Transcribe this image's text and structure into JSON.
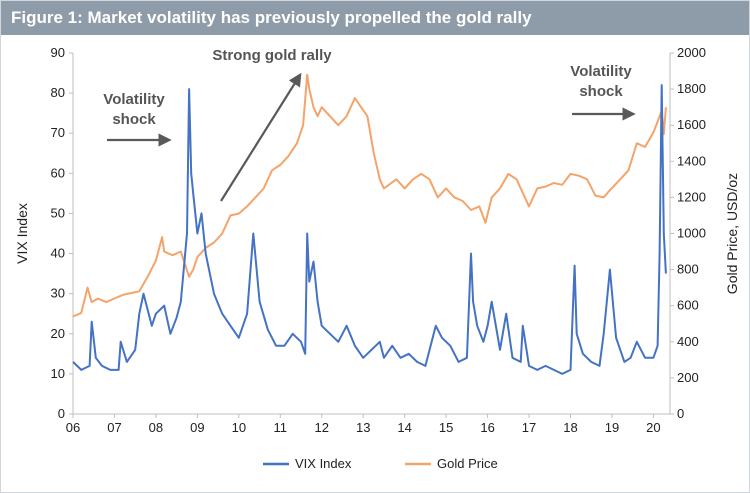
{
  "figure": {
    "title": "Figure 1: Market volatility has previously propelled the gold rally"
  },
  "chart_data": {
    "type": "line",
    "xlabel": "",
    "x_ticks": [
      "06",
      "07",
      "08",
      "09",
      "10",
      "11",
      "12",
      "13",
      "14",
      "15",
      "16",
      "17",
      "18",
      "19",
      "20"
    ],
    "xlim": [
      2006.0,
      2020.4
    ],
    "ylabel_left": "VIX Index",
    "ylim_left": [
      0,
      90
    ],
    "yticks_left": [
      "0",
      "10",
      "20",
      "30",
      "40",
      "50",
      "60",
      "70",
      "80",
      "90"
    ],
    "ylabel_right": "Gold Price, USD/oz",
    "ylim_right": [
      0,
      2000
    ],
    "yticks_right": [
      "0",
      "200",
      "400",
      "600",
      "800",
      "1000",
      "1200",
      "1400",
      "1600",
      "1800",
      "2000"
    ],
    "grid": false,
    "legend_position": "bottom-center",
    "series": [
      {
        "name": "VIX Index",
        "axis": "left",
        "color": "#4472c4",
        "x": [
          2006.0,
          2006.2,
          2006.4,
          2006.45,
          2006.55,
          2006.7,
          2006.9,
          2007.1,
          2007.15,
          2007.3,
          2007.5,
          2007.6,
          2007.7,
          2007.9,
          2008.0,
          2008.2,
          2008.35,
          2008.5,
          2008.6,
          2008.75,
          2008.8,
          2008.85,
          2008.9,
          2009.0,
          2009.1,
          2009.2,
          2009.4,
          2009.6,
          2009.8,
          2010.0,
          2010.2,
          2010.35,
          2010.5,
          2010.7,
          2010.9,
          2011.1,
          2011.3,
          2011.5,
          2011.6,
          2011.65,
          2011.7,
          2011.8,
          2011.9,
          2012.0,
          2012.2,
          2012.4,
          2012.6,
          2012.8,
          2013.0,
          2013.2,
          2013.4,
          2013.5,
          2013.7,
          2013.9,
          2014.1,
          2014.3,
          2014.5,
          2014.75,
          2014.9,
          2015.1,
          2015.3,
          2015.5,
          2015.6,
          2015.65,
          2015.75,
          2015.9,
          2016.0,
          2016.1,
          2016.3,
          2016.45,
          2016.6,
          2016.8,
          2016.85,
          2017.0,
          2017.2,
          2017.4,
          2017.6,
          2017.8,
          2018.0,
          2018.1,
          2018.15,
          2018.3,
          2018.5,
          2018.7,
          2018.8,
          2018.95,
          2019.1,
          2019.3,
          2019.45,
          2019.6,
          2019.8,
          2020.0,
          2020.1,
          2020.15,
          2020.2,
          2020.25,
          2020.3
        ],
        "values": [
          13,
          11,
          12,
          23,
          14,
          12,
          11,
          11,
          18,
          13,
          16,
          25,
          30,
          22,
          25,
          27,
          20,
          24,
          28,
          45,
          81,
          60,
          55,
          45,
          50,
          40,
          30,
          25,
          22,
          19,
          25,
          45,
          28,
          21,
          17,
          17,
          20,
          18,
          15,
          45,
          33,
          38,
          28,
          22,
          20,
          18,
          22,
          17,
          14,
          16,
          18,
          14,
          17,
          14,
          15,
          13,
          12,
          22,
          19,
          17,
          13,
          14,
          40,
          28,
          22,
          18,
          22,
          28,
          16,
          25,
          14,
          13,
          22,
          12,
          11,
          12,
          11,
          10,
          11,
          37,
          20,
          15,
          13,
          12,
          20,
          36,
          19,
          13,
          14,
          18,
          14,
          14,
          17,
          40,
          82,
          45,
          35
        ]
      },
      {
        "name": "Gold Price",
        "axis": "right",
        "color": "#f4a46a",
        "x": [
          2006.0,
          2006.2,
          2006.35,
          2006.45,
          2006.6,
          2006.8,
          2007.0,
          2007.2,
          2007.4,
          2007.6,
          2007.8,
          2008.0,
          2008.15,
          2008.2,
          2008.4,
          2008.6,
          2008.8,
          2008.9,
          2009.0,
          2009.2,
          2009.4,
          2009.6,
          2009.8,
          2010.0,
          2010.2,
          2010.4,
          2010.6,
          2010.8,
          2011.0,
          2011.2,
          2011.4,
          2011.55,
          2011.65,
          2011.7,
          2011.8,
          2011.9,
          2012.0,
          2012.2,
          2012.4,
          2012.6,
          2012.8,
          2012.95,
          2013.1,
          2013.25,
          2013.4,
          2013.5,
          2013.8,
          2014.0,
          2014.2,
          2014.4,
          2014.6,
          2014.8,
          2015.0,
          2015.2,
          2015.4,
          2015.6,
          2015.8,
          2015.95,
          2016.1,
          2016.3,
          2016.5,
          2016.7,
          2016.9,
          2017.0,
          2017.2,
          2017.4,
          2017.6,
          2017.8,
          2018.0,
          2018.2,
          2018.4,
          2018.6,
          2018.8,
          2018.95,
          2019.2,
          2019.4,
          2019.6,
          2019.8,
          2020.0,
          2020.1,
          2020.2,
          2020.25,
          2020.3
        ],
        "values": [
          540,
          560,
          700,
          620,
          640,
          620,
          640,
          660,
          670,
          680,
          760,
          850,
          980,
          900,
          880,
          900,
          760,
          800,
          870,
          920,
          950,
          1000,
          1100,
          1110,
          1150,
          1200,
          1250,
          1350,
          1380,
          1430,
          1500,
          1600,
          1880,
          1800,
          1700,
          1650,
          1700,
          1650,
          1600,
          1650,
          1750,
          1700,
          1650,
          1450,
          1300,
          1250,
          1300,
          1250,
          1300,
          1330,
          1300,
          1200,
          1250,
          1200,
          1180,
          1130,
          1150,
          1060,
          1200,
          1250,
          1330,
          1300,
          1200,
          1150,
          1250,
          1260,
          1280,
          1270,
          1330,
          1320,
          1300,
          1210,
          1200,
          1240,
          1300,
          1350,
          1500,
          1480,
          1560,
          1620,
          1680,
          1550,
          1700
        ]
      }
    ],
    "annotations": [
      {
        "id": "shock1",
        "lines": [
          "Volatility",
          "shock"
        ]
      },
      {
        "id": "rally",
        "lines": [
          "Strong gold rally"
        ]
      },
      {
        "id": "shock2",
        "lines": [
          "Volatility",
          "shock"
        ]
      }
    ]
  }
}
